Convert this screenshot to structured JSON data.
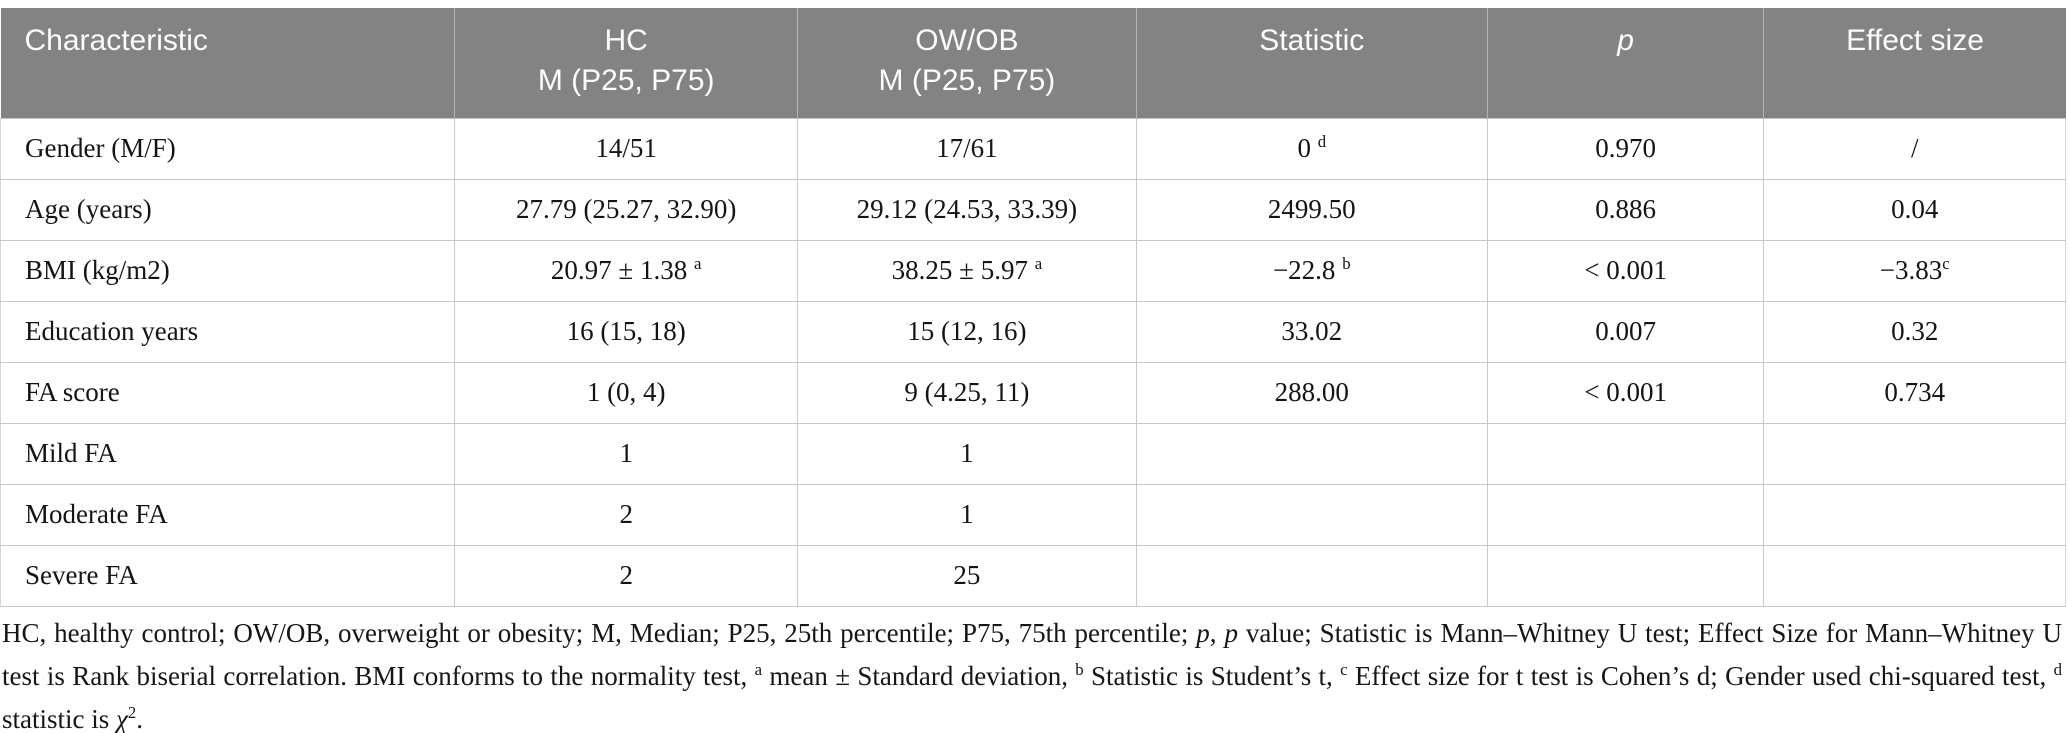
{
  "colors": {
    "header_bg": "#838383",
    "header_text": "#fcfcfc",
    "header_divider": "#b4b4b4",
    "grid_line": "#c8c8c8",
    "body_text": "#141414"
  },
  "table": {
    "columns": [
      {
        "label": "Characteristic",
        "align": "left",
        "width": "22.0%",
        "italic": false
      },
      {
        "label": "HC\nM (P25, P75)",
        "align": "center",
        "width": "16.6%",
        "italic": false
      },
      {
        "label": "OW/OB\nM (P25, P75)",
        "align": "center",
        "width": "16.4%",
        "italic": false
      },
      {
        "label": "Statistic",
        "align": "center",
        "width": "17.0%",
        "italic": false
      },
      {
        "label": "p",
        "align": "center",
        "width": "13.4%",
        "italic": true
      },
      {
        "label": "Effect size",
        "align": "center",
        "width": "14.6%",
        "italic": false
      }
    ],
    "rows": [
      [
        "Gender (M/F)",
        "14/51",
        "17/61",
        "0 ^d",
        "0.970",
        "/"
      ],
      [
        "Age (years)",
        "27.79 (25.27, 32.90)",
        "29.12 (24.53, 33.39)",
        "2499.50",
        "0.886",
        "0.04"
      ],
      [
        "BMI (kg/m2)",
        "20.97 ± 1.38 ^a",
        "38.25 ± 5.97 ^a",
        "−22.8 ^b",
        "< 0.001",
        "−3.83^c"
      ],
      [
        "Education years",
        "16 (15, 18)",
        "15 (12, 16)",
        "33.02",
        "0.007",
        "0.32"
      ],
      [
        "FA score",
        "1 (0, 4)",
        "9 (4.25, 11)",
        "288.00",
        "< 0.001",
        "0.734"
      ],
      [
        "Mild FA",
        "1",
        "1",
        "",
        "",
        ""
      ],
      [
        "Moderate FA",
        "2",
        "1",
        "",
        "",
        ""
      ],
      [
        "Severe FA",
        "2",
        "25",
        "",
        "",
        ""
      ]
    ]
  },
  "footnote": {
    "segments": [
      {
        "t": "HC, healthy control; OW/OB, overweight or obesity; M, Median; P25, 25th percentile; P75, 75th percentile; ",
        "style": "plain"
      },
      {
        "t": "p",
        "style": "italic"
      },
      {
        "t": ", ",
        "style": "plain"
      },
      {
        "t": "p",
        "style": "italic"
      },
      {
        "t": " value; Statistic is Mann–Whitney U test; Effect Size for Mann–Whitney U test is Rank biserial correlation. BMI conforms to the normality test, ",
        "style": "plain"
      },
      {
        "t": "a",
        "style": "sup"
      },
      {
        "t": " mean ± Standard deviation, ",
        "style": "plain"
      },
      {
        "t": "b",
        "style": "sup"
      },
      {
        "t": " Statistic is Student’s t, ",
        "style": "plain"
      },
      {
        "t": "c",
        "style": "sup"
      },
      {
        "t": " Effect size for t test is Cohen’s d; Gender used chi-squared test, ",
        "style": "plain"
      },
      {
        "t": "d",
        "style": "sup"
      },
      {
        "t": " statistic is ",
        "style": "plain"
      },
      {
        "t": "χ",
        "style": "italic"
      },
      {
        "t": "2",
        "style": "sup"
      },
      {
        "t": ".",
        "style": "plain"
      }
    ]
  }
}
